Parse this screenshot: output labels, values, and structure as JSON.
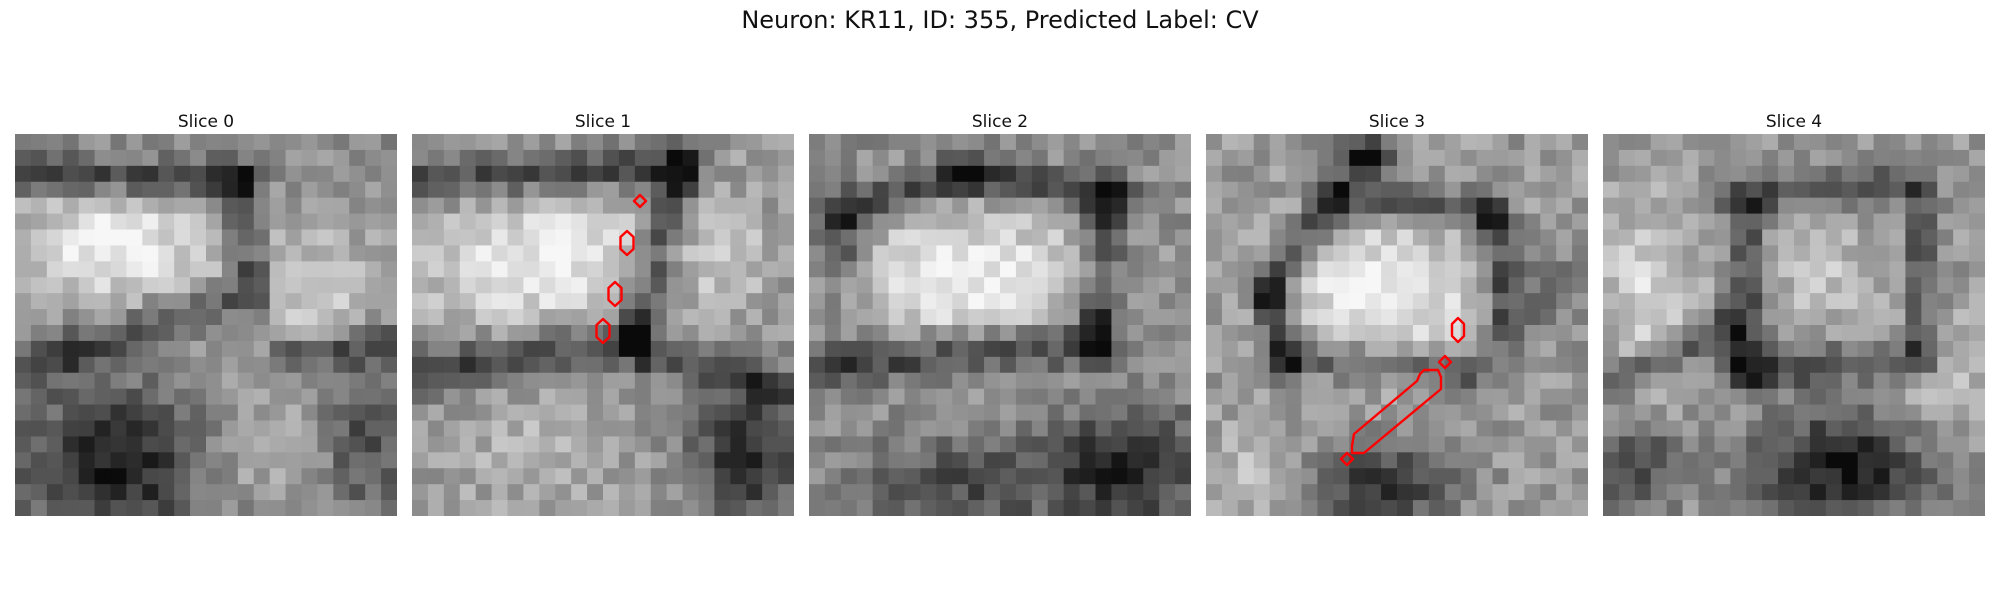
{
  "figure": {
    "title": "Neuron: KR11, ID: 355, Predicted Label: CV"
  },
  "panels": [
    {
      "label": "Slice 0",
      "seed": 11,
      "scene": "s0",
      "has_outline": false
    },
    {
      "label": "Slice 1",
      "seed": 23,
      "scene": "s1",
      "has_outline": true
    },
    {
      "label": "Slice 2",
      "seed": 37,
      "scene": "s2",
      "has_outline": false
    },
    {
      "label": "Slice 3",
      "seed": 41,
      "scene": "s3",
      "has_outline": true
    },
    {
      "label": "Slice 4",
      "seed": 53,
      "scene": "s4",
      "has_outline": false
    }
  ],
  "colors": {
    "outline": "#ff0000",
    "light": "#e6e6e6",
    "dark": "#1a1a1a"
  }
}
